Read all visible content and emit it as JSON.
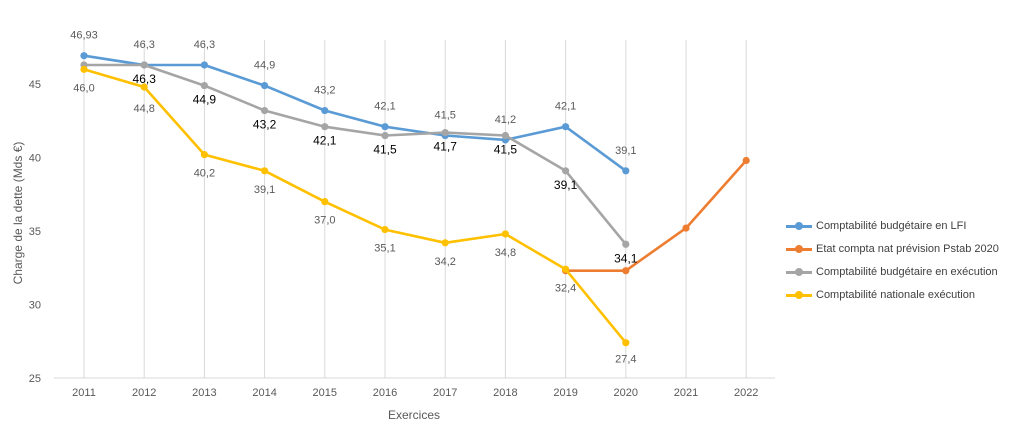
{
  "chart_data": {
    "type": "line",
    "categories": [
      "2011",
      "2012",
      "2013",
      "2014",
      "2015",
      "2016",
      "2017",
      "2018",
      "2019",
      "2020",
      "2021",
      "2022"
    ],
    "xlabel": "Exercices",
    "ylabel": "Charge de la dette (Mds €)",
    "ylim": [
      25,
      48
    ],
    "yticks": [
      25,
      30,
      35,
      40,
      45
    ],
    "grid": "vertical lines at each category",
    "legend_position": "right",
    "series": [
      {
        "name": "Comptabilité budgétaire en LFI",
        "color": "#5b9bd5",
        "values": [
          46.93,
          46.3,
          46.3,
          44.9,
          43.2,
          42.1,
          41.5,
          41.2,
          42.1,
          39.1,
          null,
          null
        ],
        "labels": [
          "46,93",
          "46,3",
          "46,3",
          "44,9",
          "43,2",
          "42,1",
          "41,5",
          "41,2",
          "42,1",
          "39,1",
          "",
          ""
        ]
      },
      {
        "name": "Etat compta nat prévision Pstab 2020",
        "color": "#ed7d31",
        "values": [
          null,
          null,
          null,
          null,
          null,
          null,
          null,
          null,
          32.3,
          32.3,
          35.2,
          39.8
        ],
        "labels": [
          "",
          "",
          "",
          "",
          "",
          "",
          "",
          "",
          "",
          "",
          "",
          ""
        ]
      },
      {
        "name": "Comptabilité budgétaire en exécution",
        "color": "#a5a5a5",
        "values": [
          46.3,
          46.3,
          44.9,
          43.2,
          42.1,
          41.5,
          41.7,
          41.5,
          39.1,
          34.1,
          null,
          null
        ],
        "labels": [
          "",
          "46,3",
          "44,9",
          "43,2",
          "42,1",
          "41,5",
          "41,7",
          "41,5",
          "39,1",
          "34,1",
          "",
          ""
        ]
      },
      {
        "name": "Comptabilité nationale exécution",
        "color": "#ffc000",
        "values": [
          46.0,
          44.8,
          40.2,
          39.1,
          37.0,
          35.1,
          34.2,
          34.8,
          32.4,
          27.4,
          null,
          null
        ],
        "labels": [
          "46,0",
          "44,8",
          "40,2",
          "39,1",
          "37,0",
          "35,1",
          "34,2",
          "34,8",
          "32,4",
          "27,4",
          "",
          ""
        ]
      }
    ]
  }
}
